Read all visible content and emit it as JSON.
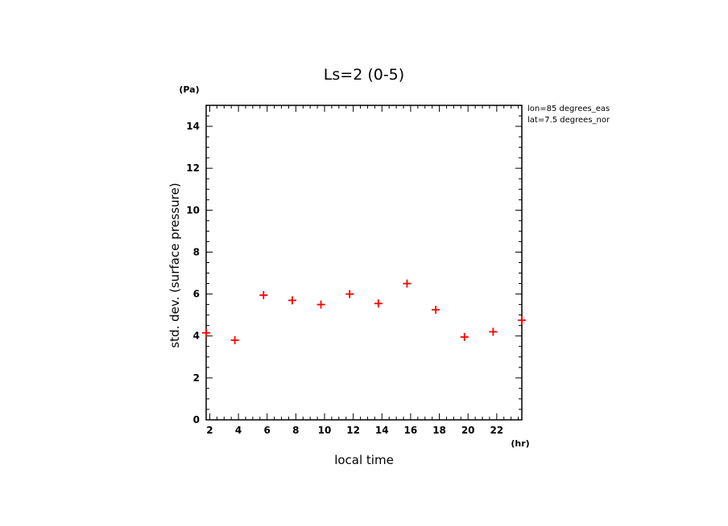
{
  "chart_data": {
    "type": "scatter",
    "title": "Ls=2 (0-5)",
    "xlabel": "local time",
    "ylabel": "std. dev. (surface pressure)",
    "x_unit": "(hr)",
    "y_unit": "(Pa)",
    "xlim": [
      1.75,
      23.75
    ],
    "ylim": [
      0,
      15
    ],
    "x_ticks": [
      2,
      4,
      6,
      8,
      10,
      12,
      14,
      16,
      18,
      20,
      22
    ],
    "y_ticks": [
      0,
      2,
      4,
      6,
      8,
      10,
      12,
      14
    ],
    "annotations": [
      "lon=85 degrees_eas",
      "lat=7.5 degrees_nor"
    ],
    "marker": "+",
    "marker_color": "#ff0000",
    "grid": false,
    "x": [
      1.75,
      3.75,
      5.75,
      7.75,
      9.75,
      11.75,
      13.75,
      15.75,
      17.75,
      19.75,
      21.75,
      23.75
    ],
    "y": [
      4.15,
      3.8,
      5.95,
      5.7,
      5.5,
      6.0,
      5.55,
      6.5,
      5.25,
      3.95,
      4.2,
      4.75
    ]
  }
}
